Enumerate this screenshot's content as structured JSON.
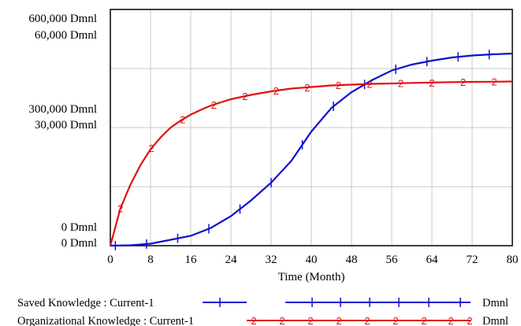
{
  "chart_data": {
    "type": "line",
    "xlabel": "Time (Month)",
    "xlim": [
      0,
      80
    ],
    "x_ticks": [
      "0",
      "8",
      "16",
      "24",
      "32",
      "40",
      "48",
      "56",
      "64",
      "72",
      "80"
    ],
    "grid": true,
    "y_axes": [
      {
        "ylim": [
          0,
          600000
        ],
        "tick_labels": [
          "0 Dmnl",
          "300,000 Dmnl",
          "600,000 Dmnl"
        ],
        "series": "Organizational Knowledge : Current-1"
      },
      {
        "ylim": [
          0,
          60000
        ],
        "tick_labels": [
          "0 Dmnl",
          "30,000 Dmnl",
          "60,000 Dmnl"
        ],
        "series": "Saved Knowledge : Current-1"
      }
    ],
    "series": [
      {
        "name": "Saved Knowledge : Current-1",
        "label": "Saved Knowledge : Current-1",
        "unit": "Dmnl",
        "marker": "1",
        "color": "#1010d0",
        "axis": 1,
        "x": [
          0,
          4,
          8,
          12,
          16,
          20,
          24,
          28,
          32,
          36,
          40,
          44,
          48,
          52,
          56,
          60,
          64,
          68,
          72,
          76,
          80
        ],
        "y": [
          0,
          100,
          500,
          1500,
          2500,
          4500,
          7500,
          11500,
          16000,
          21500,
          29000,
          35000,
          39000,
          42000,
          44500,
          46000,
          47000,
          47800,
          48300,
          48600,
          48800
        ]
      },
      {
        "name": "Organizational Knowledge : Current-1",
        "label": "Organizational Knowledge : Current-1",
        "unit": "Dmnl",
        "marker": "2",
        "color": "#e01010",
        "axis": 0,
        "x": [
          0,
          2,
          4,
          6,
          8,
          10,
          12,
          14,
          16,
          18,
          20,
          24,
          28,
          32,
          36,
          40,
          44,
          48,
          52,
          56,
          60,
          64,
          68,
          72,
          76,
          80
        ],
        "y": [
          0,
          95000,
          155000,
          205000,
          245000,
          275000,
          300000,
          318000,
          333000,
          345000,
          356000,
          372000,
          383000,
          392000,
          399000,
          403000,
          407000,
          409000,
          411000,
          412000,
          413500,
          414500,
          415500,
          416000,
          416500,
          417000
        ]
      }
    ]
  }
}
